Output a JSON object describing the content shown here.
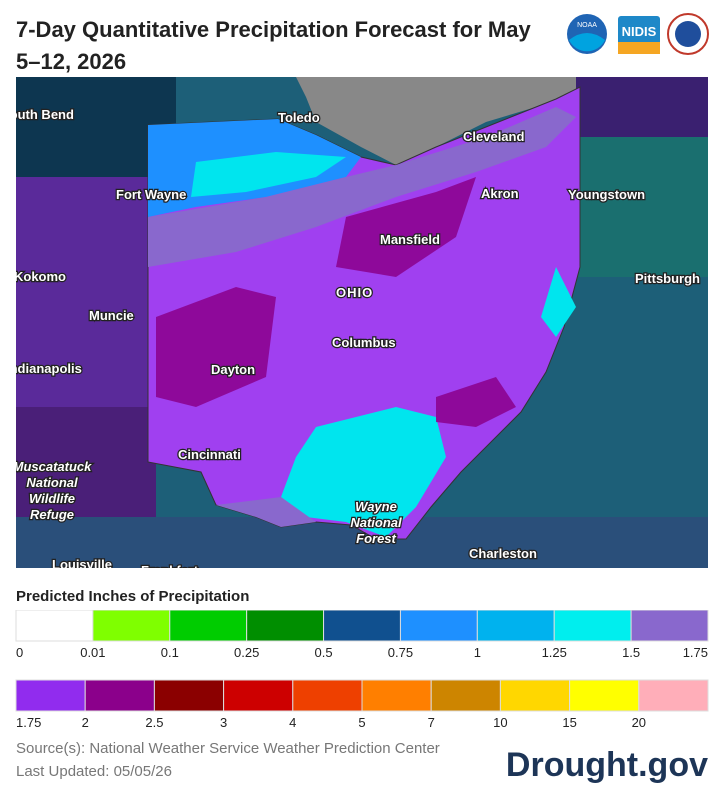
{
  "header": {
    "title": "7-Day Quantitative Precipitation Forecast for May 5–12, 2026",
    "logos": [
      "NOAA",
      "NIDIS"
    ]
  },
  "map": {
    "labels": [
      {
        "text": [
          "South Bend"
        ]
      },
      {
        "text": [
          "Toledo"
        ]
      },
      {
        "text": [
          "Cleveland"
        ]
      },
      {
        "text": [
          "Fort Wayne"
        ]
      },
      {
        "text": [
          "Akron"
        ]
      },
      {
        "text": [
          "Youngstown"
        ]
      },
      {
        "text": [
          "Mansfield"
        ]
      },
      {
        "text": [
          "Kokomo"
        ]
      },
      {
        "text": [
          "OHIO"
        ]
      },
      {
        "text": [
          "Pittsburgh"
        ]
      },
      {
        "text": [
          "Muncie"
        ]
      },
      {
        "text": [
          "Columbus"
        ]
      },
      {
        "text": [
          "Indianapolis"
        ]
      },
      {
        "text": [
          "Dayton"
        ]
      },
      {
        "text": [
          "Cincinnati"
        ]
      },
      {
        "text": [
          "Muscatatuck",
          "National",
          "Wildlife",
          "Refuge"
        ]
      },
      {
        "text": [
          "Wayne",
          "National",
          "Forest"
        ]
      },
      {
        "text": [
          "Charleston"
        ]
      },
      {
        "text": [
          "Louisville"
        ]
      },
      {
        "text": [
          "Frankfort"
        ]
      }
    ]
  },
  "legend": {
    "title": "Predicted Inches of Precipitation",
    "rows": [
      {
        "colors": [
          "#ffffff",
          "#7fff00",
          "#00cc00",
          "#008e00",
          "#10508f",
          "#1e90ff",
          "#00b2ee",
          "#00eeee",
          "#8968cd"
        ],
        "labels": [
          "0",
          "0.01",
          "0.1",
          "0.25",
          "0.5",
          "0.75",
          "1",
          "1.25",
          "1.5",
          "1.75"
        ]
      },
      {
        "colors": [
          "#912cee",
          "#8b008b",
          "#8b0000",
          "#cd0000",
          "#ee4000",
          "#ff7f00",
          "#cd8500",
          "#ffd700",
          "#ffff00",
          "#ffaeb9"
        ],
        "labels": [
          "1.75",
          "2",
          "2.5",
          "3",
          "4",
          "5",
          "7",
          "10",
          "15",
          "20"
        ]
      }
    ]
  },
  "footer": {
    "source": "Source(s): National Weather Service Weather Prediction Center",
    "updated": "Last Updated: 05/05/26",
    "brand": "Drought.gov"
  }
}
